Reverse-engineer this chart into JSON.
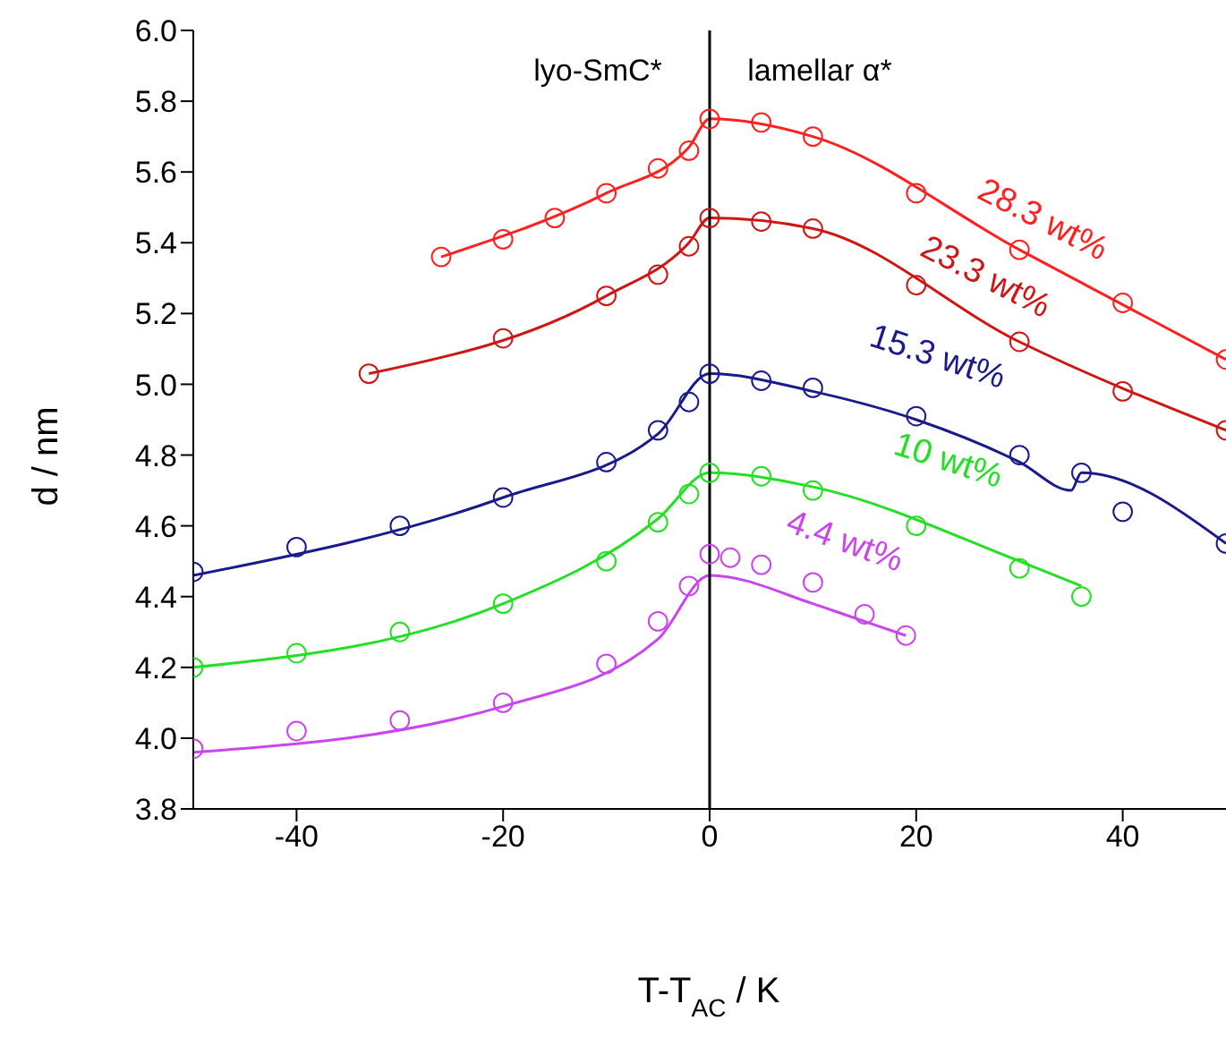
{
  "chart_data": {
    "type": "scatter",
    "xlabel": "T-T$_{AC}$ / K",
    "ylabel": "d / nm",
    "xlim": [
      -50,
      50
    ],
    "xticks": [
      -40,
      -20,
      0,
      20,
      40
    ],
    "ylim": [
      3.8,
      6.0
    ],
    "yticks": [
      {
        "value": 3.8,
        "label": "3.8"
      },
      {
        "value": 4,
        "label": "4.0"
      },
      {
        "value": 4.2,
        "label": "4.2"
      },
      {
        "value": 4.4,
        "label": "4.4"
      },
      {
        "value": 4.6,
        "label": "4.6"
      },
      {
        "value": 4.8,
        "label": "4.8"
      },
      {
        "value": 5,
        "label": "5.0"
      },
      {
        "value": 5.2,
        "label": "5.2"
      },
      {
        "value": 5.4,
        "label": "5.4"
      },
      {
        "value": 5.6,
        "label": "5.6"
      },
      {
        "value": 5.8,
        "label": "5.8"
      },
      {
        "value": 6,
        "label": "6.0"
      }
    ],
    "grid": false,
    "annotations": [
      "lyo-SmC*",
      "lamellar α*"
    ],
    "ref_lines": [
      {
        "axis": "x",
        "value": 0,
        "color": "#000000"
      }
    ],
    "series": [
      {
        "name": "28.3 wt%",
        "marker": "circle",
        "color": "#ff2020",
        "x": [
          -26,
          -20,
          -15,
          -10,
          -5,
          -2,
          0,
          5,
          10,
          20,
          30,
          40,
          50
        ],
        "values": [
          5.36,
          5.41,
          5.47,
          5.54,
          5.61,
          5.66,
          5.75,
          5.74,
          5.7,
          5.54,
          5.38,
          5.23,
          5.07
        ]
      },
      {
        "name": "23.3 wt%",
        "marker": "circle",
        "color": "#d01515",
        "x": [
          -33,
          -20,
          -10,
          -5,
          -2,
          0,
          5,
          10,
          20,
          30,
          40,
          50
        ],
        "values": [
          5.03,
          5.13,
          5.25,
          5.31,
          5.39,
          5.47,
          5.46,
          5.44,
          5.28,
          5.12,
          4.98,
          4.87
        ]
      },
      {
        "name": "15.3 wt%",
        "marker": "circle",
        "color": "#1a1a8c",
        "x": [
          -50,
          -40,
          -30,
          -20,
          -10,
          -5,
          -2,
          0,
          5,
          10,
          20,
          30,
          36,
          40,
          50
        ],
        "values": [
          4.47,
          4.54,
          4.6,
          4.68,
          4.78,
          4.87,
          4.95,
          5.03,
          5.01,
          4.99,
          4.91,
          4.8,
          4.75,
          4.64,
          4.55
        ]
      },
      {
        "name": "10 wt%",
        "marker": "circle",
        "color": "#22e022",
        "x": [
          -50,
          -40,
          -30,
          -20,
          -10,
          -5,
          -2,
          0,
          5,
          10,
          20,
          30,
          36
        ],
        "values": [
          4.2,
          4.24,
          4.3,
          4.38,
          4.5,
          4.61,
          4.69,
          4.75,
          4.74,
          4.7,
          4.6,
          4.48,
          4.4
        ]
      },
      {
        "name": "4.4 wt%",
        "marker": "circle",
        "color": "#cc44ee",
        "x": [
          -50,
          -40,
          -30,
          -20,
          -10,
          -5,
          -2,
          0,
          2,
          5,
          10,
          15,
          19
        ],
        "values": [
          3.97,
          4.02,
          4.05,
          4.1,
          4.21,
          4.33,
          4.43,
          4.52,
          4.51,
          4.49,
          4.44,
          4.35,
          4.29
        ]
      },
      {
        "type": "line",
        "marker": "none",
        "color": "#ff2020",
        "x": [
          -26,
          -10,
          -2,
          0,
          10,
          30,
          50
        ],
        "values": [
          5.36,
          5.54,
          5.67,
          5.75,
          5.7,
          5.38,
          5.07
        ]
      },
      {
        "type": "line",
        "marker": "none",
        "color": "#d01515",
        "x": [
          -33,
          -10,
          -2,
          0,
          10,
          30,
          50
        ],
        "values": [
          5.03,
          5.25,
          5.4,
          5.47,
          5.44,
          5.12,
          4.87
        ]
      },
      {
        "type": "line",
        "marker": "none",
        "color": "#1a1a8c",
        "x": [
          -50,
          -20,
          -5,
          0,
          10,
          20,
          30,
          35,
          36,
          50
        ],
        "values": [
          4.46,
          4.68,
          4.86,
          5.03,
          4.98,
          4.9,
          4.78,
          4.7,
          4.75,
          4.55
        ]
      },
      {
        "type": "line",
        "marker": "none",
        "color": "#22e022",
        "x": [
          -50,
          -20,
          -5,
          0,
          10,
          30,
          36
        ],
        "values": [
          4.2,
          4.38,
          4.62,
          4.75,
          4.71,
          4.5,
          4.43
        ]
      },
      {
        "type": "line",
        "marker": "none",
        "color": "#cc44ee",
        "x": [
          -50,
          -20,
          -5,
          0,
          10,
          13,
          19
        ],
        "values": [
          3.96,
          4.09,
          4.28,
          4.46,
          4.38,
          4.35,
          4.29
        ]
      }
    ]
  }
}
